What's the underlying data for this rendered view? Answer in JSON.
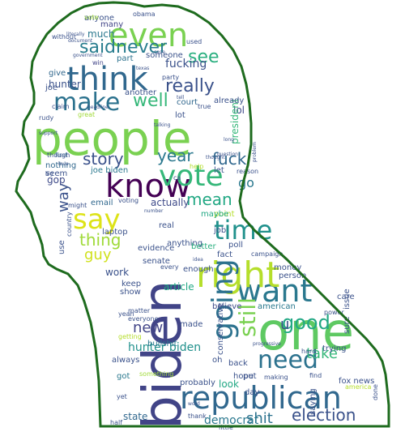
{
  "outline_color": "#1e6b1e",
  "words": [
    {
      "text": "people",
      "color": "#7ad151"
    },
    {
      "text": "biden",
      "color": "#414487"
    },
    {
      "text": "one",
      "color": "#5ec962"
    },
    {
      "text": "know",
      "color": "#440154"
    },
    {
      "text": "think",
      "color": "#31688e"
    },
    {
      "text": "even",
      "color": "#7ad151"
    },
    {
      "text": "want",
      "color": "#2a788e"
    },
    {
      "text": "republican",
      "color": "#31688e"
    },
    {
      "text": "right",
      "color": "#b5de2b"
    },
    {
      "text": "going",
      "color": "#2c728e"
    },
    {
      "text": "vote",
      "color": "#35b779"
    },
    {
      "text": "say",
      "color": "#dde318"
    },
    {
      "text": "time",
      "color": "#21918c"
    },
    {
      "text": "make",
      "color": "#2c728e"
    },
    {
      "text": "need",
      "color": "#2c728e"
    },
    {
      "text": "saidnever",
      "color": "#287d8e"
    },
    {
      "text": "see",
      "color": "#29af7f"
    },
    {
      "text": "really",
      "color": "#3b528b"
    },
    {
      "text": "well",
      "color": "#35b779"
    },
    {
      "text": "good",
      "color": "#22a884"
    },
    {
      "text": "still",
      "color": "#7ad151"
    },
    {
      "text": "story",
      "color": "#3b528b"
    },
    {
      "text": "fuck",
      "color": "#31688e"
    },
    {
      "text": "mean",
      "color": "#22a884"
    },
    {
      "text": "thing",
      "color": "#a0da39"
    },
    {
      "text": "year",
      "color": "#2a788e"
    },
    {
      "text": "way",
      "color": "#3b528b"
    },
    {
      "text": "guy",
      "color": "#d0e11c"
    },
    {
      "text": "take",
      "color": "#35b779"
    },
    {
      "text": "election",
      "color": "#3b528b"
    },
    {
      "text": "shit",
      "color": "#2c728e"
    },
    {
      "text": "new",
      "color": "#414487"
    },
    {
      "text": "democrat",
      "color": "#2a788e"
    },
    {
      "text": "go",
      "color": "#2a788e"
    },
    {
      "text": "fucking",
      "color": "#3b528b"
    },
    {
      "text": "u",
      "color": "#3b528b"
    },
    {
      "text": "hunter biden",
      "color": "#21918c"
    },
    {
      "text": "much",
      "color": "#2a788e"
    },
    {
      "text": "hunter",
      "color": "#3b528b"
    },
    {
      "text": "lol",
      "color": "#3e4a89"
    },
    {
      "text": "actually",
      "color": "#3e4a89"
    },
    {
      "text": "work",
      "color": "#3b528b"
    },
    {
      "text": "article",
      "color": "#22a884"
    },
    {
      "text": "state",
      "color": "#31688e"
    },
    {
      "text": "point",
      "color": "#b5de2b"
    },
    {
      "text": "gop",
      "color": "#3e4a89"
    },
    {
      "text": "joe biden",
      "color": "#2a788e"
    },
    {
      "text": "president",
      "color": "#35b779"
    },
    {
      "text": "conservative",
      "color": "#3b528b"
    },
    {
      "text": "believe",
      "color": "#3e4a89"
    },
    {
      "text": "american",
      "color": "#2a788e"
    },
    {
      "text": "lot",
      "color": "#3b528b"
    },
    {
      "text": "anyone",
      "color": "#3b528b"
    },
    {
      "text": "part",
      "color": "#2c728e"
    },
    {
      "text": "win",
      "color": "#414487"
    },
    {
      "text": "many",
      "color": "#414487"
    },
    {
      "text": "give",
      "color": "#31688e"
    },
    {
      "text": "joe",
      "color": "#3b528b"
    },
    {
      "text": "another",
      "color": "#3b528b"
    },
    {
      "text": "court",
      "color": "#31688e"
    },
    {
      "text": "already",
      "color": "#3b528b"
    },
    {
      "text": "first",
      "color": "#31688e"
    },
    {
      "text": "nothing",
      "color": "#31688e"
    },
    {
      "text": "seem",
      "color": "#3b528b"
    },
    {
      "text": "email",
      "color": "#31688e"
    },
    {
      "text": "real",
      "color": "#3b528b"
    },
    {
      "text": "maybe",
      "color": "#22a884"
    },
    {
      "text": "laptop",
      "color": "#3b528b"
    },
    {
      "text": "anything",
      "color": "#3b528b"
    },
    {
      "text": "better",
      "color": "#29af7f"
    },
    {
      "text": "poll",
      "color": "#3b528b"
    },
    {
      "text": "fact",
      "color": "#3b528b"
    },
    {
      "text": "money",
      "color": "#3b528b"
    },
    {
      "text": "person",
      "color": "#3b528b"
    },
    {
      "text": "keep",
      "color": "#3b528b"
    },
    {
      "text": "show",
      "color": "#3b528b"
    },
    {
      "text": "matter",
      "color": "#3b528b"
    },
    {
      "text": "made",
      "color": "#3b528b"
    },
    {
      "text": "bullshit",
      "color": "#2a788e"
    },
    {
      "text": "always",
      "color": "#3b528b"
    },
    {
      "text": "got",
      "color": "#2a788e"
    },
    {
      "text": "probably",
      "color": "#3b528b"
    },
    {
      "text": "look",
      "color": "#22a884"
    },
    {
      "text": "put",
      "color": "#3b528b"
    },
    {
      "text": "issue",
      "color": "#3b528b"
    },
    {
      "text": "care",
      "color": "#3b528b"
    },
    {
      "text": "sure",
      "color": "#3b528b"
    },
    {
      "text": "trying",
      "color": "#3b528b"
    },
    {
      "text": "fox news",
      "color": "#3b528b"
    },
    {
      "text": "saying",
      "color": "#3b528b"
    },
    {
      "text": "back",
      "color": "#3b528b"
    },
    {
      "text": "hope",
      "color": "#3b528b"
    },
    {
      "text": "oh",
      "color": "#3b528b"
    },
    {
      "text": "day",
      "color": "#3b528b"
    },
    {
      "text": "senate",
      "color": "#3b528b"
    },
    {
      "text": "evidence",
      "color": "#3b528b"
    },
    {
      "text": "enough",
      "color": "#3b528b"
    },
    {
      "text": "ca",
      "color": "#3b528b"
    },
    {
      "text": "let",
      "color": "#3b528b"
    },
    {
      "text": "reason",
      "color": "#3b528b"
    },
    {
      "text": "hard",
      "color": "#3b528b"
    },
    {
      "text": "find",
      "color": "#3b528b"
    },
    {
      "text": "making",
      "color": "#3b528b"
    },
    {
      "text": "everyone",
      "color": "#3b528b"
    },
    {
      "text": "might",
      "color": "#3b528b"
    },
    {
      "text": "voting",
      "color": "#3b528b"
    },
    {
      "text": "party",
      "color": "#3b528b"
    },
    {
      "text": "someone",
      "color": "#3b528b"
    },
    {
      "text": "great",
      "color": "#a0da39"
    },
    {
      "text": "claim",
      "color": "#3b528b"
    },
    {
      "text": "use",
      "color": "#3b528b"
    },
    {
      "text": "country",
      "color": "#3b528b"
    },
    {
      "text": "something",
      "color": "#a0da39"
    },
    {
      "text": "vote",
      "color": "#a0da39"
    },
    {
      "text": "obama",
      "color": "#3b528b"
    },
    {
      "text": "without",
      "color": "#3b528b"
    },
    {
      "text": "rudy",
      "color": "#3b528b"
    },
    {
      "text": "though",
      "color": "#3b528b"
    },
    {
      "text": "campaign",
      "color": "#3b528b"
    },
    {
      "text": "used",
      "color": "#3b528b"
    },
    {
      "text": "true",
      "color": "#3b528b"
    },
    {
      "text": "help",
      "color": "#b5de2b"
    },
    {
      "text": "every",
      "color": "#3b528b"
    },
    {
      "text": "half",
      "color": "#3b528b"
    },
    {
      "text": "yet",
      "color": "#3b528b"
    },
    {
      "text": "job",
      "color": "#3b528b"
    },
    {
      "text": "yeah",
      "color": "#3b528b"
    },
    {
      "text": "getting",
      "color": "#b5de2b"
    },
    {
      "text": "power",
      "color": "#3b528b"
    },
    {
      "text": "done",
      "color": "#3b528b"
    },
    {
      "text": "little",
      "color": "#3b528b"
    },
    {
      "text": "thank",
      "color": "#3b528b"
    },
    {
      "text": "america",
      "color": "#b5de2b"
    },
    {
      "text": "number",
      "color": "#3b528b"
    },
    {
      "text": "talking",
      "color": "#3b528b"
    },
    {
      "text": "headline",
      "color": "#3b528b"
    },
    {
      "text": "government",
      "color": "#3b528b"
    },
    {
      "text": "document",
      "color": "#3b528b"
    },
    {
      "text": "texas",
      "color": "#3b528b"
    },
    {
      "text": "long",
      "color": "#3b528b"
    },
    {
      "text": "question",
      "color": "#3b528b"
    },
    {
      "text": "support",
      "color": "#3b528b"
    },
    {
      "text": "big",
      "color": "#3b528b"
    },
    {
      "text": "case",
      "color": "#3b528b"
    },
    {
      "text": "problem",
      "color": "#3b528b"
    },
    {
      "text": "word",
      "color": "#3b528b"
    },
    {
      "text": "progressive",
      "color": "#3b528b"
    },
    {
      "text": "love",
      "color": "#3b528b"
    },
    {
      "text": "literally",
      "color": "#3b528b"
    },
    {
      "text": "thought",
      "color": "#3b528b"
    },
    {
      "text": "idea",
      "color": "#3b528b"
    },
    {
      "text": "tell",
      "color": "#3b528b"
    },
    {
      "text": "two",
      "color": "#3b528b"
    },
    {
      "text": "happen",
      "color": "#3b528b"
    }
  ]
}
